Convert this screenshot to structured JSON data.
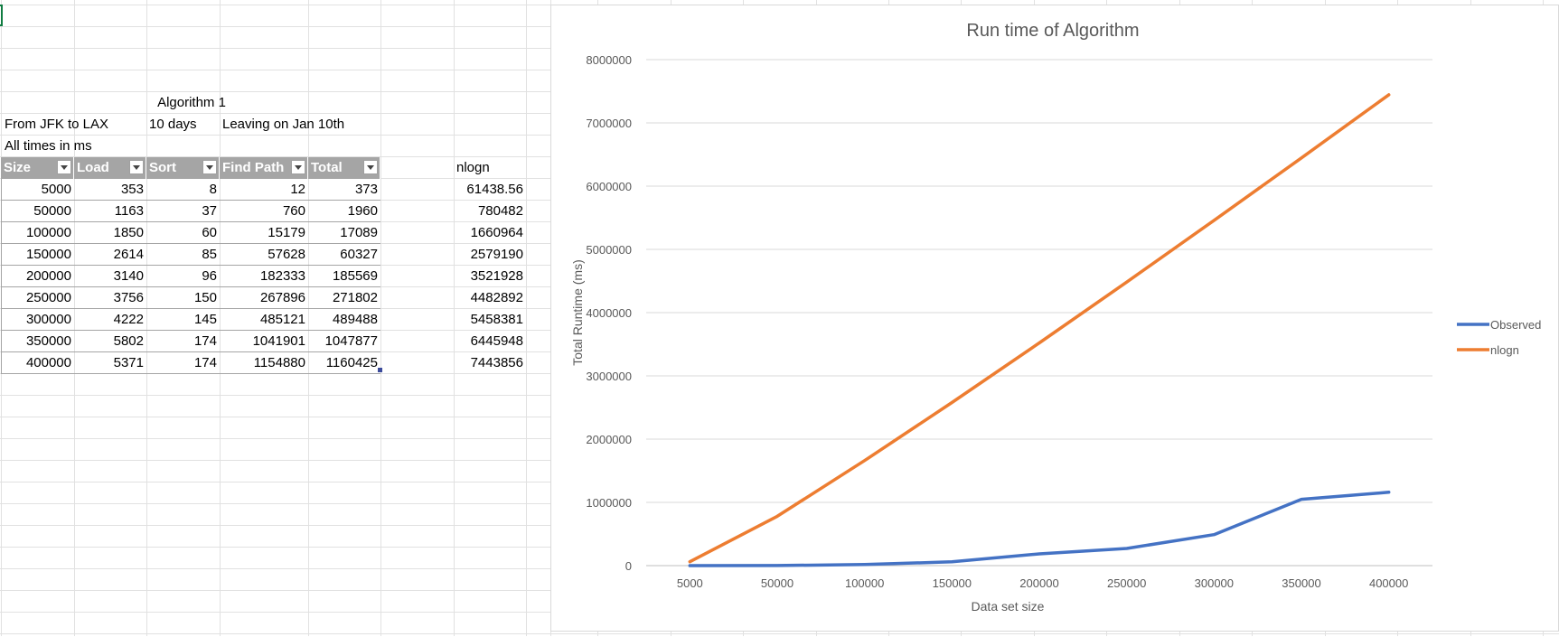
{
  "sheet": {
    "title_cell": "Algorithm 1",
    "info_row": [
      "From JFK to LAX",
      "10 days",
      "Leaving on Jan 10th"
    ],
    "units_note": "All times in ms",
    "table_headers": [
      "Size",
      "Load",
      "Sort",
      "Find Path",
      "Total"
    ],
    "extra_header": "nlogn",
    "rows": [
      [
        "5000",
        "353",
        "8",
        "12",
        "373"
      ],
      [
        "50000",
        "1163",
        "37",
        "760",
        "1960"
      ],
      [
        "100000",
        "1850",
        "60",
        "15179",
        "17089"
      ],
      [
        "150000",
        "2614",
        "85",
        "57628",
        "60327"
      ],
      [
        "200000",
        "3140",
        "96",
        "182333",
        "185569"
      ],
      [
        "250000",
        "3756",
        "150",
        "267896",
        "271802"
      ],
      [
        "300000",
        "4222",
        "145",
        "485121",
        "489488"
      ],
      [
        "350000",
        "5802",
        "174",
        "1041901",
        "1047877"
      ],
      [
        "400000",
        "5371",
        "174",
        "1154880",
        "1160425"
      ]
    ],
    "nlogn_values": [
      "61438.56",
      "780482",
      "1660964",
      "2579190",
      "3521928",
      "4482892",
      "5458381",
      "6445948",
      "7443856"
    ]
  },
  "chart_data": {
    "type": "line",
    "title": "Run time of Algorithm",
    "xlabel": "Data set size",
    "ylabel": "Total Runtime (ms)",
    "categories": [
      "5000",
      "50000",
      "100000",
      "150000",
      "200000",
      "250000",
      "300000",
      "350000",
      "400000"
    ],
    "ylim": [
      0,
      8000000
    ],
    "yticks": [
      "0",
      "1000000",
      "2000000",
      "3000000",
      "4000000",
      "5000000",
      "6000000",
      "7000000",
      "8000000"
    ],
    "legend_position": "right",
    "grid": true,
    "series": [
      {
        "name": "Observed",
        "color": "#4472c4",
        "values": [
          373,
          1960,
          17089,
          60327,
          185569,
          271802,
          489488,
          1047877,
          1160425
        ]
      },
      {
        "name": "nlogn",
        "color": "#ed7d31",
        "values": [
          61438.56,
          780482,
          1660964,
          2579190,
          3521928,
          4482892,
          5458381,
          6445948,
          7443856
        ]
      }
    ]
  }
}
